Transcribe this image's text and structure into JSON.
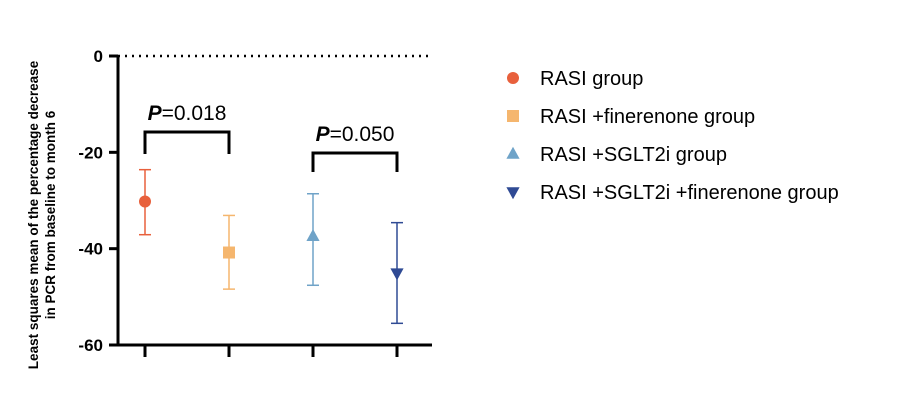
{
  "chart_data": {
    "type": "scatter",
    "title": "",
    "xlabel": "",
    "ylabel": "Least squares mean of the percentage decrease in PCR from baseline to month 6",
    "ylabel_lines": [
      "Least squares mean of the percentage decrease",
      "in PCR from baseline to month 6"
    ],
    "ylim": [
      -60,
      0
    ],
    "yticks": [
      0,
      -20,
      -40,
      -60
    ],
    "ytick_labels": [
      "0",
      "-20",
      "-40",
      "-60"
    ],
    "reference_line": 0,
    "grid": false,
    "legend_position": "right",
    "series": [
      {
        "name": "RASI group",
        "marker": "circle",
        "color": "#e8603c",
        "mean": -30.2,
        "ci_upper": -23.6,
        "ci_lower": -37.1
      },
      {
        "name": "RASI +finerenone group",
        "marker": "square",
        "color": "#f5b66e",
        "mean": -40.8,
        "ci_upper": -33.1,
        "ci_lower": -48.4
      },
      {
        "name": "RASI +SGLT2i group",
        "marker": "triangle-up",
        "color": "#6fa3c8",
        "mean": -37.4,
        "ci_upper": -28.6,
        "ci_lower": -47.6
      },
      {
        "name": "RASI +SGLT2i +finerenone group",
        "marker": "triangle-down",
        "color": "#2f4a94",
        "mean": -45.1,
        "ci_upper": -34.6,
        "ci_lower": -55.5
      }
    ],
    "annotations": [
      {
        "from": 0,
        "to": 1,
        "p_label": "P",
        "p_value": "=0.018"
      },
      {
        "from": 2,
        "to": 3,
        "p_label": "P",
        "p_value": "=0.050"
      }
    ]
  }
}
